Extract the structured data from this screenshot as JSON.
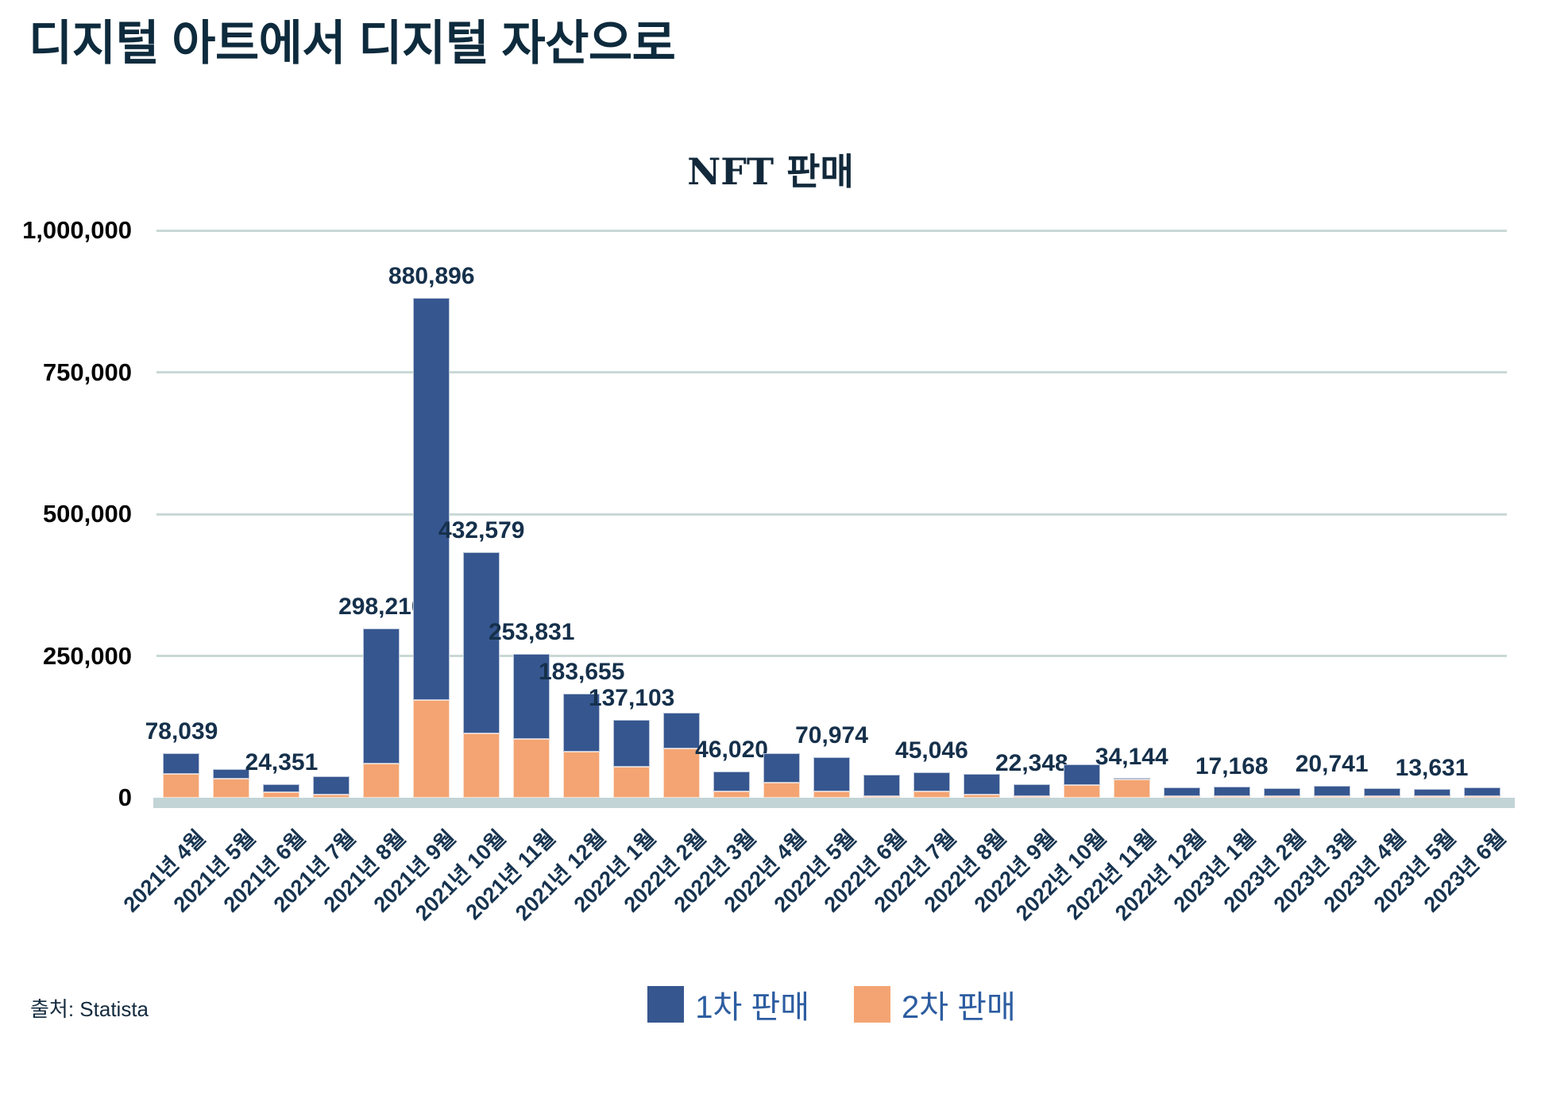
{
  "page_title": "디지털 아트에서 디지털 자산으로",
  "source": "출처: Statista",
  "colors": {
    "primary_bar": "#36568F",
    "secondary_bar": "#F4A472",
    "gridline": "#C9D8D7",
    "baseline_band": "#C2D4D5",
    "title_text": "#0E2B3D",
    "value_label_text": "#15304B",
    "axis_label_text": "#16334F",
    "legend_text": "#2D5DA1"
  },
  "legend": {
    "items": [
      {
        "label": "1차 판매",
        "color": "#36568F"
      },
      {
        "label": "2차 판매",
        "color": "#F4A472"
      }
    ]
  },
  "chart_data": {
    "type": "bar",
    "stacked": true,
    "title": "NFT 판매",
    "xlabel": "",
    "ylabel": "",
    "ylim": [
      0,
      1000000
    ],
    "yticks": [
      0,
      250000,
      500000,
      750000,
      1000000
    ],
    "ytick_labels": [
      "0",
      "250,000",
      "500,000",
      "750,000",
      "1,000,000"
    ],
    "grid": "horizontal",
    "legend_position": "bottom",
    "categories": [
      "2021년 4월",
      "2021년 5월",
      "2021년 6월",
      "2021년 7월",
      "2021년 8월",
      "2021년 9월",
      "2021년 10월",
      "2021년 11월",
      "2021년 12월",
      "2022년 1월",
      "2022년 2월",
      "2022년 3월",
      "2022년 4월",
      "2022년 5월",
      "2022년 6월",
      "2022년 7월",
      "2022년 8월",
      "2022년 9월",
      "2022년 10월",
      "2022년 11월",
      "2022년 12월",
      "2023년 1월",
      "2023년 2월",
      "2023년 3월",
      "2023년 4월",
      "2023년 5월",
      "2023년 6월"
    ],
    "series": [
      {
        "name": "1차 판매",
        "color": "#36568F",
        "values": [
          36039,
          17000,
          14351,
          32000,
          238210,
          708896,
          319579,
          150831,
          102655,
          83103,
          63000,
          35020,
          51000,
          59974,
          38500,
          34046,
          36000,
          20348,
          36000,
          2144,
          15000,
          16168,
          14000,
          18241,
          14000,
          12631,
          15500
        ]
      },
      {
        "name": "2차 판매",
        "color": "#F4A472",
        "values": [
          42000,
          33000,
          10000,
          6000,
          60000,
          172000,
          113000,
          103000,
          81000,
          54000,
          87000,
          11000,
          27000,
          11000,
          2500,
          11000,
          6000,
          2000,
          23000,
          32000,
          1000,
          1000,
          1000,
          2500,
          1000,
          1000,
          1500
        ]
      }
    ],
    "value_labels": [
      "78,039",
      null,
      "24,351",
      null,
      "298,210",
      "880,896",
      "432,579",
      "253,831",
      "183,655",
      "137,103",
      null,
      "46,020",
      null,
      "70,974",
      null,
      "45,046",
      null,
      "22,348",
      null,
      "34,144",
      null,
      "17,168",
      null,
      "20,741",
      null,
      "13,631",
      null
    ]
  }
}
